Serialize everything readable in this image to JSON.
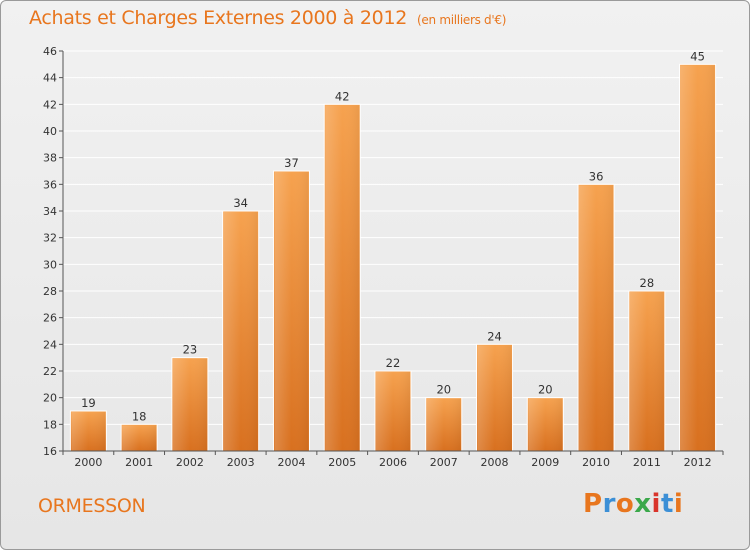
{
  "chart_data": {
    "type": "bar",
    "title": "Achats et Charges Externes 2000 à 2012",
    "subtitle": "(en milliers d'€)",
    "categories": [
      "2000",
      "2001",
      "2002",
      "2003",
      "2004",
      "2005",
      "2006",
      "2007",
      "2008",
      "2009",
      "2010",
      "2011",
      "2012"
    ],
    "values": [
      19,
      18,
      23,
      34,
      37,
      42,
      22,
      20,
      24,
      20,
      36,
      28,
      45
    ],
    "ylim": [
      16,
      46
    ],
    "yticks": [
      16,
      18,
      20,
      22,
      24,
      26,
      28,
      30,
      32,
      34,
      36,
      38,
      40,
      42,
      44,
      46
    ],
    "grid": true,
    "xlabel": "",
    "ylabel": "",
    "bar_color": "#e8792a"
  },
  "footer": {
    "commune": "ORMESSON",
    "brand": "Proxiti",
    "brand_colors": [
      "#e8761e",
      "#3b8fd6",
      "#e8761e",
      "#3aa84a",
      "#d9342b",
      "#3b8fd6",
      "#e8761e"
    ]
  }
}
